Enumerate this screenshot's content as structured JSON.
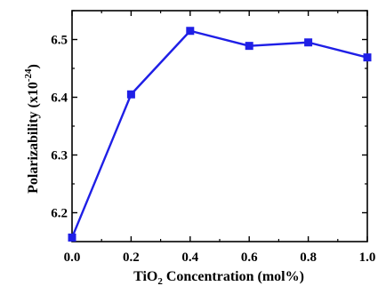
{
  "chart_data": {
    "type": "line",
    "x": [
      0.0,
      0.2,
      0.4,
      0.6,
      0.8,
      1.0
    ],
    "series": [
      {
        "values": [
          6.157,
          6.405,
          6.515,
          6.489,
          6.495,
          6.469
        ],
        "color": "#1f1fe6"
      }
    ],
    "xlim": [
      0.0,
      1.0
    ],
    "ylim": [
      6.15,
      6.55
    ],
    "xticks": [
      "0.0",
      "0.2",
      "0.4",
      "0.6",
      "0.8",
      "1.0"
    ],
    "yticks": [
      "6.2",
      "6.3",
      "6.4",
      "6.5"
    ],
    "xlabel": {
      "part1": "TiO",
      "sub": "2",
      "part2": " Concentration (mol%)"
    },
    "ylabel": {
      "part1": "Polarizability (x10",
      "sup": "-24",
      "part2": ")"
    },
    "marker": "square",
    "grid": false,
    "legend": false
  }
}
